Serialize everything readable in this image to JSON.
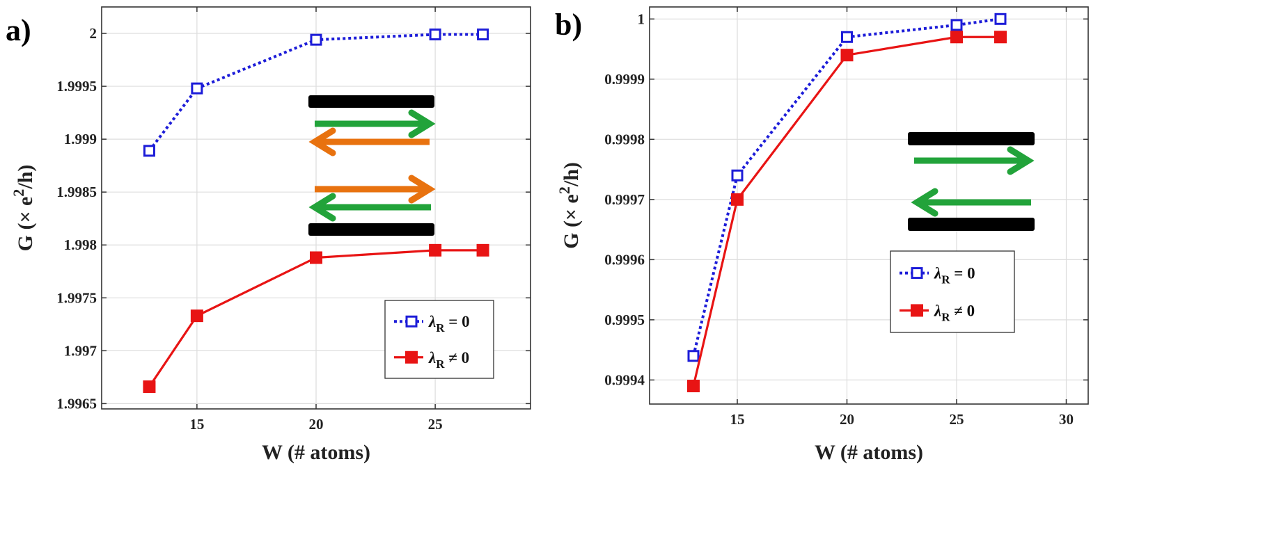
{
  "figure": {
    "panel_labels": [
      "a)",
      "b)"
    ]
  },
  "colors": {
    "series_zero": "#1c1cd8",
    "series_nonzero": "#e81414",
    "arrow_green": "#22a33a",
    "arrow_orange": "#e8720f",
    "bar_black": "#000000"
  },
  "chart_data": [
    {
      "type": "line",
      "panel": "a)",
      "xlabel": "W (# atoms)",
      "ylabel": "G (× e2/h)",
      "ylabel_parts": {
        "prefix": "G (× e",
        "sup": "2",
        "suffix": "/h)"
      },
      "xlim": [
        11,
        29
      ],
      "ylim": [
        1.99645,
        2.00025
      ],
      "xticks": [
        15,
        20,
        25
      ],
      "xtick_labels": [
        "15",
        "20",
        "25"
      ],
      "yticks": [
        1.9965,
        1.997,
        1.9975,
        1.998,
        1.9985,
        1.999,
        1.9995,
        2.0
      ],
      "ytick_labels": [
        "1.9965",
        "1.997",
        "1.9975",
        "1.998",
        "1.9985",
        "1.999",
        "1.9995",
        "2"
      ],
      "grid": true,
      "legend_position": "lower-right",
      "x": [
        13,
        15,
        20,
        25,
        27
      ],
      "series": [
        {
          "name": "λR = 0",
          "legend_main": "λ",
          "legend_sub": "R",
          "legend_rest": " = 0",
          "style": "dotted-open-square",
          "values": [
            1.99889,
            1.99948,
            1.99994,
            1.99999,
            1.99999
          ]
        },
        {
          "name": "λR ≠ 0",
          "legend_main": "λ",
          "legend_sub": "R",
          "legend_rest": " ≠ 0",
          "style": "solid-filled-square",
          "values": [
            1.99666,
            1.99733,
            1.99788,
            1.99795,
            1.99795
          ]
        }
      ],
      "inset": "two black bars with green and orange counter-propagating arrow pairs"
    },
    {
      "type": "line",
      "panel": "b)",
      "xlabel": "W (# atoms)",
      "ylabel": "G (× e2/h)",
      "ylabel_parts": {
        "prefix": "G (× e",
        "sup": "2",
        "suffix": "/h)"
      },
      "xlim": [
        11,
        31
      ],
      "ylim": [
        0.99936,
        1.00002
      ],
      "xticks": [
        15,
        20,
        25,
        30
      ],
      "xtick_labels": [
        "15",
        "20",
        "25",
        "30"
      ],
      "yticks": [
        0.9994,
        0.9995,
        0.9996,
        0.9997,
        0.9998,
        0.9999,
        1.0
      ],
      "ytick_labels": [
        "0.9994",
        "0.9995",
        "0.9996",
        "0.9997",
        "0.9998",
        "0.9999",
        "1"
      ],
      "grid": true,
      "legend_position": "lower-right",
      "x": [
        13,
        15,
        20,
        25,
        27
      ],
      "series": [
        {
          "name": "λR = 0",
          "legend_main": "λ",
          "legend_sub": "R",
          "legend_rest": " = 0",
          "style": "dotted-open-square",
          "values": [
            0.99944,
            0.99974,
            0.99997,
            0.99999,
            1.0
          ]
        },
        {
          "name": "λR ≠ 0",
          "legend_main": "λ",
          "legend_sub": "R",
          "legend_rest": " ≠ 0",
          "style": "solid-filled-square",
          "values": [
            0.99939,
            0.9997,
            0.99994,
            0.99997,
            0.99997
          ]
        }
      ],
      "inset": "two black bars with green counter-propagating arrows"
    }
  ]
}
